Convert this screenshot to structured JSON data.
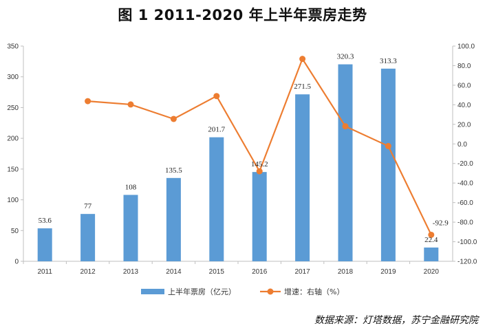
{
  "chart_data": {
    "type": "bar+line",
    "title": "图 1  2011-2020 年上半年票房走势",
    "categories": [
      "2011",
      "2012",
      "2013",
      "2014",
      "2015",
      "2016",
      "2017",
      "2018",
      "2019",
      "2020"
    ],
    "series": [
      {
        "name": "上半年票房（亿元）",
        "type": "bar",
        "axis": "left",
        "color": "#5B9BD5",
        "values": [
          53.6,
          77,
          108,
          135.5,
          201.7,
          145.2,
          271.5,
          320.3,
          313.3,
          22.4
        ],
        "labels": [
          "53.6",
          "77",
          "108",
          "135.5",
          "201.7",
          "145.2",
          "271.5",
          "320.3",
          "313.3",
          "22.4"
        ]
      },
      {
        "name": "增速：右轴（%）",
        "type": "line",
        "axis": "right",
        "color": "#ED7D31",
        "values": [
          null,
          43.7,
          40.3,
          25.5,
          48.9,
          -28.0,
          86.9,
          18.0,
          -2.2,
          -92.9
        ],
        "labels": [
          null,
          null,
          null,
          null,
          null,
          null,
          null,
          null,
          null,
          "-92.9"
        ]
      }
    ],
    "y_left": {
      "min": 0,
      "max": 350,
      "step": 50,
      "ticks": [
        "0",
        "50",
        "100",
        "150",
        "200",
        "250",
        "300",
        "350"
      ]
    },
    "y_right": {
      "min": -120,
      "max": 100,
      "step": 20,
      "ticks": [
        "-120.0",
        "-100.0",
        "-80.0",
        "-60.0",
        "-40.0",
        "-20.0",
        "0.0",
        "20.0",
        "40.0",
        "60.0",
        "80.0",
        "100.0"
      ]
    },
    "grid": false,
    "legend": "bottom-center"
  },
  "source": "数据来源：灯塔数据，苏宁金融研究院"
}
